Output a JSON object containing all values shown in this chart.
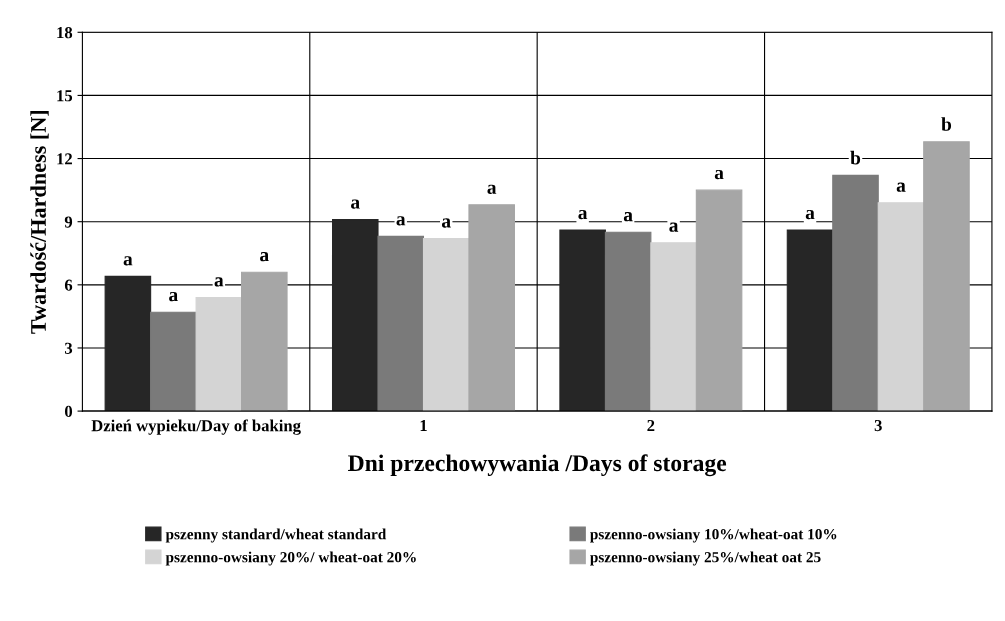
{
  "chart_data": {
    "type": "bar",
    "xlabel": "Dni przechowywania /Days of storage",
    "ylabel": "Twardość/Hardness [N]",
    "categories": [
      "Dzień wypieku/Day of baking",
      "1",
      "2",
      "3"
    ],
    "series": [
      {
        "name": "pszenny standard/wheat standard",
        "color": "#262626",
        "values": [
          6.4,
          9.1,
          8.6,
          8.6
        ]
      },
      {
        "name": "pszenno-owsiany 10%/wheat-oat 10%",
        "color": "#7a7a7a",
        "values": [
          4.7,
          8.3,
          8.5,
          11.2
        ]
      },
      {
        "name": "pszenno-owsiany 20%/ wheat-oat 20%",
        "color": "#d4d4d4",
        "values": [
          5.4,
          8.2,
          8.0,
          9.9
        ]
      },
      {
        "name": "pszenno-owsiany 25%/wheat oat 25",
        "color": "#a6a6a6",
        "values": [
          6.6,
          9.8,
          10.5,
          12.8
        ]
      }
    ],
    "ylim": [
      0,
      18
    ],
    "yticks": [
      0,
      3,
      6,
      9,
      12,
      15,
      18
    ],
    "grid": true,
    "legend": "bottom",
    "annotations": [
      "a",
      "a",
      "a",
      "a",
      "a",
      "a",
      "a",
      "a",
      "a",
      "a",
      "a",
      "a",
      "a",
      "b",
      "a",
      "b"
    ]
  }
}
